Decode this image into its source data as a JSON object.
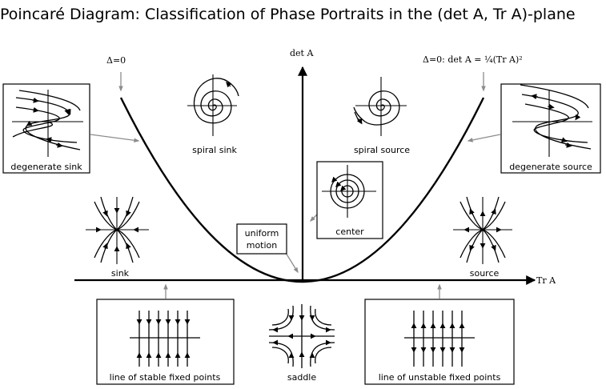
{
  "title": "Poincaré Diagram: Classification of Phase Portraits in the (det A, Tr A)-plane",
  "axes": {
    "x_label": "Tr A",
    "y_label": "det A"
  },
  "parabola": {
    "left_label": "Δ=0",
    "right_label": "Δ=0: det A = ¼(Tr A)²"
  },
  "regions": {
    "spiral_sink": "spiral sink",
    "spiral_source": "spiral source",
    "center": "center",
    "sink": "sink",
    "source": "source",
    "degenerate_sink": "degenerate sink",
    "degenerate_source": "degenerate source",
    "uniform_motion_line1": "uniform",
    "uniform_motion_line2": "motion",
    "stable_line": "line of stable fixed points",
    "unstable_line": "line of unstable fixed points",
    "saddle": "saddle"
  },
  "colors": {
    "ink": "#000000",
    "pointer": "#8c8c8c"
  }
}
